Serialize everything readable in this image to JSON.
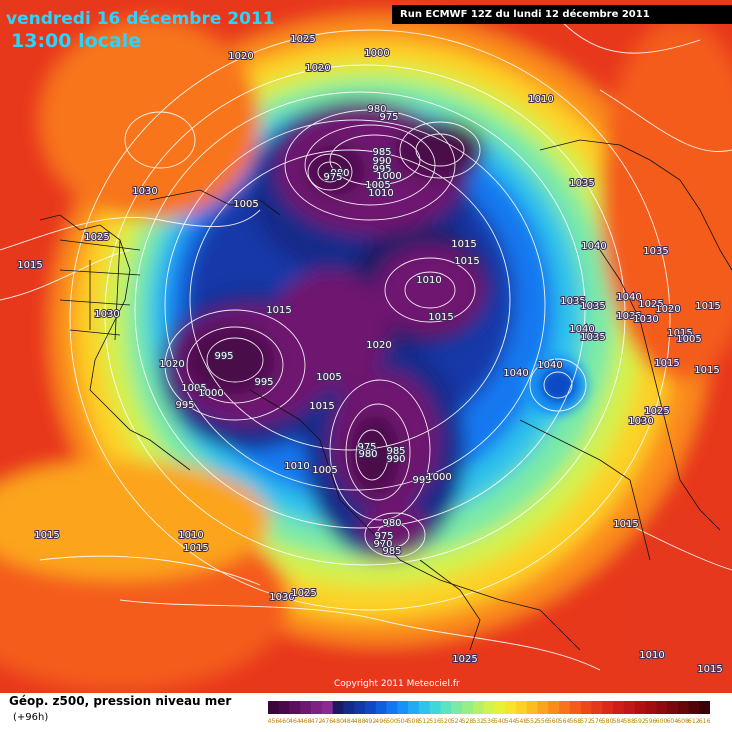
{
  "header": {
    "date_line": "vendredi 16 décembre 2011",
    "hour_line": "13:00 locale",
    "run_line": "Run ECMWF 12Z du lundi 12 décembre 2011"
  },
  "footer": {
    "product": "Géop. z500, pression niveau mer",
    "lead_time": "(+96h)",
    "copyright": "Copyright 2011 Meteociel.fr"
  },
  "legend": {
    "values": [
      "456",
      "460",
      "464",
      "468",
      "472",
      "476",
      "480",
      "484",
      "488",
      "492",
      "496",
      "500",
      "504",
      "508",
      "512",
      "516",
      "520",
      "524",
      "528",
      "532",
      "536",
      "540",
      "544",
      "548",
      "552",
      "556",
      "560",
      "564",
      "568",
      "572",
      "576",
      "580",
      "584",
      "588",
      "592",
      "596",
      "600",
      "604",
      "608",
      "612",
      "616"
    ],
    "colors": [
      "#3a0838",
      "#4a0a4a",
      "#5c0f5c",
      "#6e1870",
      "#7e2282",
      "#8a2a92",
      "#1c1a66",
      "#162a8a",
      "#1238a8",
      "#1048c4",
      "#0e5ede",
      "#1278f0",
      "#1892f6",
      "#22aaf4",
      "#2ec2ec",
      "#40d6dc",
      "#5ce4c2",
      "#7aeaa6",
      "#98ee86",
      "#b6f06a",
      "#d2f24e",
      "#e8f038",
      "#f6e42c",
      "#fcd226",
      "#fdbc22",
      "#fca41e",
      "#fb8c1c",
      "#f8741a",
      "#f45c1a",
      "#ee481a",
      "#e6381a",
      "#dc2a1a",
      "#ce2018",
      "#c01816",
      "#b01214",
      "#a00e12",
      "#8e0a10",
      "#7c080e",
      "#68060c",
      "#52040a",
      "#3a0206"
    ]
  },
  "pressure_labels": [
    {
      "text": "1025"
    },
    {
      "text": "1020"
    },
    {
      "text": "1000"
    },
    {
      "text": "1010"
    },
    {
      "text": "1020"
    },
    {
      "text": "980"
    },
    {
      "text": "975"
    },
    {
      "text": "985"
    },
    {
      "text": "990"
    },
    {
      "text": "995"
    },
    {
      "text": "1000"
    },
    {
      "text": "1005"
    },
    {
      "text": "1010"
    },
    {
      "text": "980"
    },
    {
      "text": "975"
    },
    {
      "text": "1030"
    },
    {
      "text": "1005"
    },
    {
      "text": "1035"
    },
    {
      "text": "1025"
    },
    {
      "text": "1015"
    },
    {
      "text": "1015"
    },
    {
      "text": "1015"
    },
    {
      "text": "1040"
    },
    {
      "text": "1035"
    },
    {
      "text": "1010"
    },
    {
      "text": "1030"
    },
    {
      "text": "1015"
    },
    {
      "text": "1035"
    },
    {
      "text": "1035"
    },
    {
      "text": "1040"
    },
    {
      "text": "1025"
    },
    {
      "text": "1035"
    },
    {
      "text": "1030"
    },
    {
      "text": "1020"
    },
    {
      "text": "1015"
    },
    {
      "text": "1040"
    },
    {
      "text": "1035"
    },
    {
      "text": "1015"
    },
    {
      "text": "1005"
    },
    {
      "text": "1015"
    },
    {
      "text": "1020"
    },
    {
      "text": "995"
    },
    {
      "text": "1020"
    },
    {
      "text": "1005"
    },
    {
      "text": "995"
    },
    {
      "text": "1000"
    },
    {
      "text": "995"
    },
    {
      "text": "1005"
    },
    {
      "text": "1015"
    },
    {
      "text": "1040"
    },
    {
      "text": "1040"
    },
    {
      "text": "1015"
    },
    {
      "text": "1015"
    },
    {
      "text": "1025"
    },
    {
      "text": "1030"
    },
    {
      "text": "975"
    },
    {
      "text": "980"
    },
    {
      "text": "985"
    },
    {
      "text": "990"
    },
    {
      "text": "995"
    },
    {
      "text": "1000"
    },
    {
      "text": "1010"
    },
    {
      "text": "1005"
    },
    {
      "text": "1015"
    },
    {
      "text": "980"
    },
    {
      "text": "975"
    },
    {
      "text": "970"
    },
    {
      "text": "985"
    },
    {
      "text": "1015"
    },
    {
      "text": "1010"
    },
    {
      "text": "1015"
    },
    {
      "text": "1030"
    },
    {
      "text": "1025"
    },
    {
      "text": "1025"
    },
    {
      "text": "1015"
    },
    {
      "text": "1010"
    },
    {
      "text": "1005"
    },
    {
      "text": "1010"
    }
  ]
}
